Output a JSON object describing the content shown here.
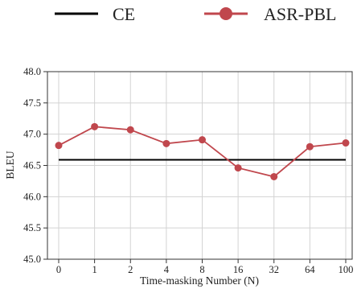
{
  "chart_data": {
    "type": "line",
    "categories": [
      "0",
      "1",
      "2",
      "4",
      "8",
      "16",
      "32",
      "64",
      "100"
    ],
    "xlabel": "Time-masking Number (N)",
    "ylabel": "BLEU",
    "ylim": [
      45.0,
      48.0
    ],
    "yticks": [
      "45.0",
      "45.5",
      "46.0",
      "46.5",
      "47.0",
      "47.5",
      "48.0"
    ],
    "grid": true,
    "legend_position": "top",
    "series": [
      {
        "name": "CE",
        "style": "flat-line",
        "color": "#000000",
        "values": [
          46.59,
          46.59,
          46.59,
          46.59,
          46.59,
          46.59,
          46.59,
          46.59,
          46.59
        ]
      },
      {
        "name": "ASR-PBL",
        "style": "line-markers",
        "color": "#c0474d",
        "values": [
          46.82,
          47.12,
          47.07,
          46.85,
          46.91,
          46.46,
          46.32,
          46.8,
          46.86
        ]
      }
    ]
  }
}
